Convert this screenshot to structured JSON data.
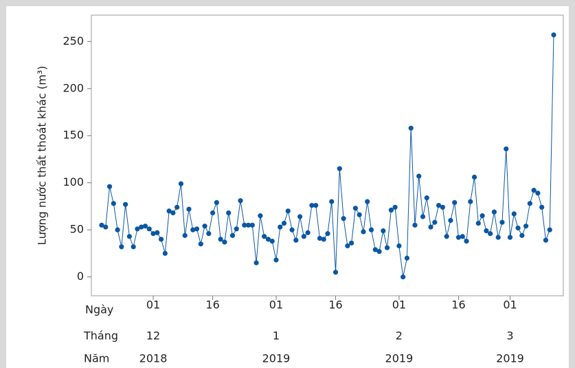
{
  "chart_data": {
    "type": "line",
    "ylabel": "Lượng nước thất thoát khác (m³)",
    "ylim": [
      -20,
      278
    ],
    "yticks": [
      0,
      50,
      100,
      150,
      200,
      250
    ],
    "x_row_labels": [
      "Ngày",
      "Tháng",
      "Năm"
    ],
    "xticks": [
      {
        "value": 13,
        "day": "01",
        "month": "12",
        "year": "2018"
      },
      {
        "value": 28,
        "day": "16"
      },
      {
        "value": 44,
        "day": "01",
        "month": "1",
        "year": "2019"
      },
      {
        "value": 59,
        "day": "16"
      },
      {
        "value": 75,
        "day": "01",
        "month": "2",
        "year": "2019"
      },
      {
        "value": 90,
        "day": "16"
      },
      {
        "value": 103,
        "day": "01",
        "month": "3",
        "year": "2019"
      }
    ],
    "color": "#0a57a4",
    "values": [
      55,
      53,
      96,
      78,
      50,
      32,
      77,
      43,
      32,
      51,
      53,
      54,
      51,
      46,
      47,
      40,
      25,
      70,
      68,
      74,
      99,
      44,
      72,
      50,
      51,
      35,
      54,
      46,
      68,
      79,
      40,
      37,
      68,
      44,
      51,
      81,
      55,
      55,
      55,
      15,
      65,
      43,
      40,
      38,
      18,
      53,
      57,
      70,
      50,
      39,
      64,
      43,
      47,
      76,
      76,
      41,
      40,
      46,
      80,
      5,
      115,
      62,
      33,
      36,
      73,
      66,
      48,
      80,
      50,
      29,
      27,
      49,
      31,
      71,
      74,
      33,
      0,
      20,
      158,
      55,
      107,
      64,
      84,
      53,
      58,
      76,
      74,
      43,
      60,
      79,
      42,
      43,
      38,
      80,
      106,
      57,
      65,
      49,
      46,
      69,
      42,
      58,
      136,
      42,
      67,
      52,
      44,
      54,
      78,
      92,
      89,
      74,
      39,
      50,
      257
    ]
  }
}
